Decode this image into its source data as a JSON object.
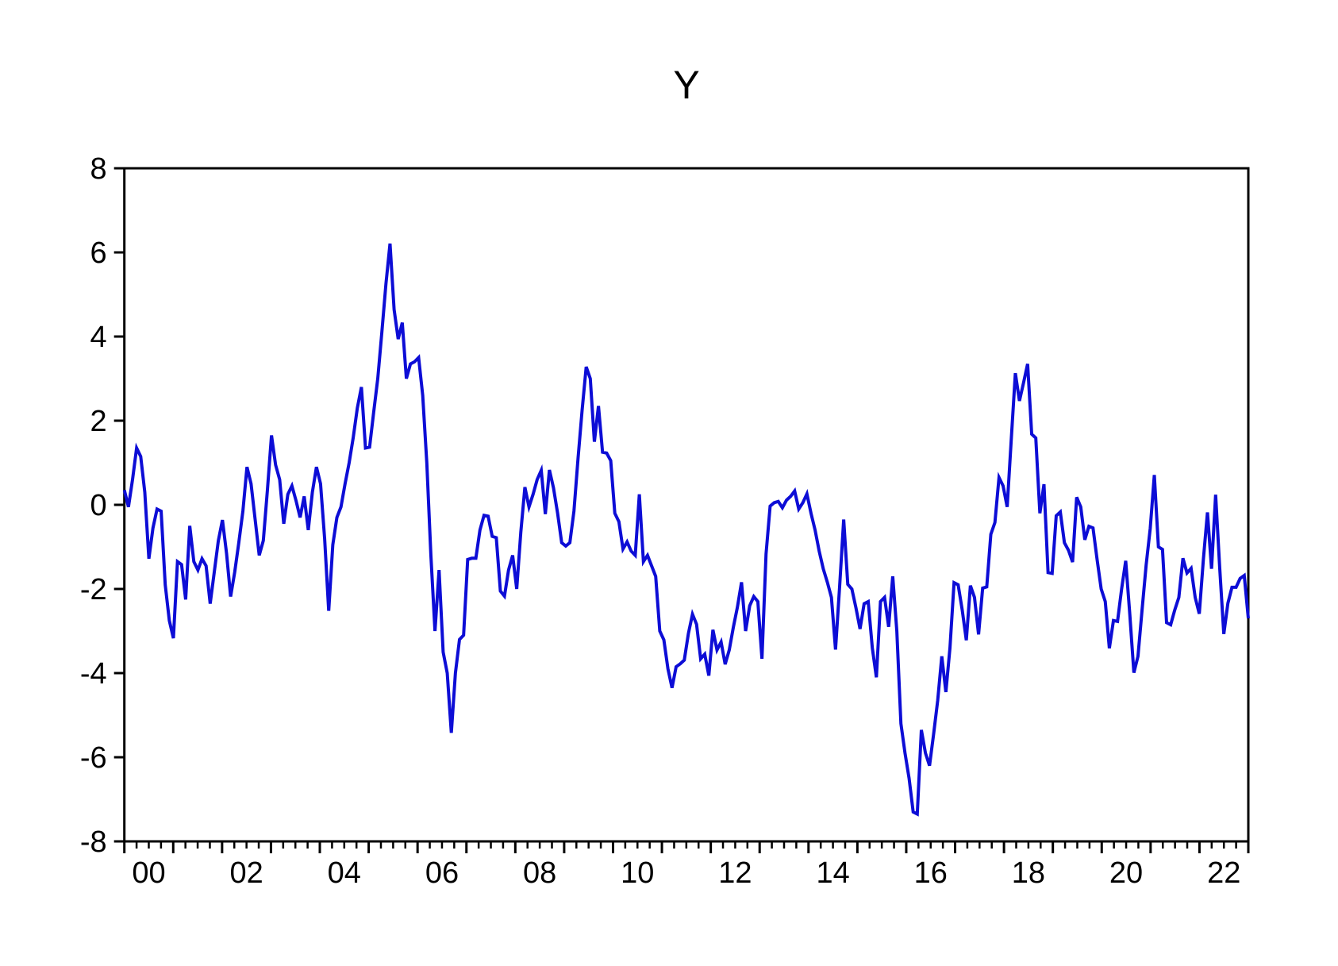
{
  "title": "Y",
  "chart_data": {
    "type": "line",
    "title": "Y",
    "xlabel": "",
    "ylabel": "",
    "frequency": "monthly",
    "start_year": 2000,
    "end_year": 2022,
    "ylim": [
      -8,
      8
    ],
    "y_ticks": [
      8,
      6,
      4,
      2,
      0,
      -2,
      -4,
      -6,
      -8
    ],
    "x_tick_labels": [
      "00",
      "02",
      "04",
      "06",
      "08",
      "10",
      "12",
      "14",
      "16",
      "18",
      "20",
      "22"
    ],
    "grid": "off",
    "legend": "none",
    "line_color": "#0d0dd6",
    "axis_color": "#000000",
    "values": [
      0.35,
      -0.05,
      0.6,
      1.35,
      1.15,
      0.3,
      -1.28,
      -0.55,
      -0.1,
      -0.15,
      -1.9,
      -2.75,
      -3.17,
      -1.35,
      -1.42,
      -2.25,
      -0.5,
      -1.35,
      -1.55,
      -1.28,
      -1.45,
      -2.35,
      -1.6,
      -0.85,
      -0.36,
      -1.15,
      -2.18,
      -1.6,
      -0.9,
      -0.15,
      0.9,
      0.5,
      -0.35,
      -1.2,
      -0.85,
      0.35,
      1.65,
      0.95,
      0.6,
      -0.45,
      0.25,
      0.45,
      0.1,
      -0.3,
      0.2,
      -0.6,
      0.3,
      0.9,
      0.5,
      -0.8,
      -2.52,
      -0.95,
      -0.3,
      -0.05,
      0.5,
      1.0,
      1.6,
      2.3,
      2.8,
      1.35,
      1.37,
      2.2,
      3.0,
      4.1,
      5.25,
      6.21,
      4.64,
      3.94,
      4.33,
      3.0,
      3.35,
      3.4,
      3.5,
      2.6,
      1.0,
      -1.2,
      -3.0,
      -1.55,
      -3.5,
      -4.0,
      -5.42,
      -4.0,
      -3.2,
      -3.1,
      -1.3,
      -1.27,
      -1.27,
      -0.6,
      -0.25,
      -0.27,
      -0.75,
      -0.78,
      -2.05,
      -2.17,
      -1.55,
      -1.2,
      -2.0,
      -0.65,
      0.42,
      -0.05,
      0.25,
      0.6,
      0.82,
      -0.22,
      0.83,
      0.4,
      -0.2,
      -0.9,
      -0.98,
      -0.9,
      -0.15,
      1.1,
      2.25,
      3.28,
      3.0,
      1.5,
      2.35,
      1.25,
      1.23,
      1.05,
      -0.2,
      -0.4,
      -1.05,
      -0.88,
      -1.1,
      -1.2,
      0.25,
      -1.35,
      -1.2,
      -1.45,
      -1.7,
      -3.0,
      -3.21,
      -3.9,
      -4.35,
      -3.85,
      -3.78,
      -3.69,
      -3.06,
      -2.6,
      -2.84,
      -3.66,
      -3.55,
      -4.06,
      -2.97,
      -3.45,
      -3.26,
      -3.79,
      -3.45,
      -2.91,
      -2.43,
      -1.84,
      -3.0,
      -2.4,
      -2.18,
      -2.3,
      -3.66,
      -1.17,
      -0.03,
      0.05,
      0.08,
      -0.07,
      0.11,
      0.2,
      0.33,
      -0.1,
      0.05,
      0.26,
      -0.2,
      -0.6,
      -1.1,
      -1.52,
      -1.84,
      -2.2,
      -3.44,
      -1.95,
      -0.35,
      -1.89,
      -2.0,
      -2.45,
      -2.95,
      -2.35,
      -2.3,
      -3.4,
      -4.1,
      -2.3,
      -2.2,
      -2.9,
      -1.7,
      -3.0,
      -5.2,
      -5.9,
      -6.5,
      -7.3,
      -7.35,
      -5.35,
      -5.9,
      -6.2,
      -5.45,
      -4.65,
      -3.6,
      -4.45,
      -3.4,
      -1.85,
      -1.9,
      -2.5,
      -3.22,
      -1.92,
      -2.2,
      -3.08,
      -1.98,
      -1.95,
      -0.7,
      -0.42,
      0.65,
      0.45,
      -0.05,
      1.56,
      3.13,
      2.47,
      2.9,
      3.35,
      1.68,
      1.59,
      -0.2,
      0.49,
      -1.61,
      -1.63,
      -0.26,
      -0.17,
      -0.9,
      -1.08,
      -1.36,
      0.18,
      -0.05,
      -0.83,
      -0.51,
      -0.55,
      -1.3,
      -2.0,
      -2.3,
      -3.41,
      -2.75,
      -2.77,
      -2.0,
      -1.33,
      -2.6,
      -3.99,
      -3.6,
      -2.5,
      -1.43,
      -0.56,
      0.71,
      -1.0,
      -1.06,
      -2.8,
      -2.85,
      -2.5,
      -2.2,
      -1.27,
      -1.62,
      -1.51,
      -2.2,
      -2.59,
      -1.3,
      -0.18,
      -1.52,
      0.24,
      -1.5,
      -3.07,
      -2.34,
      -1.96,
      -1.96,
      -1.75,
      -1.68,
      -2.7
    ]
  }
}
